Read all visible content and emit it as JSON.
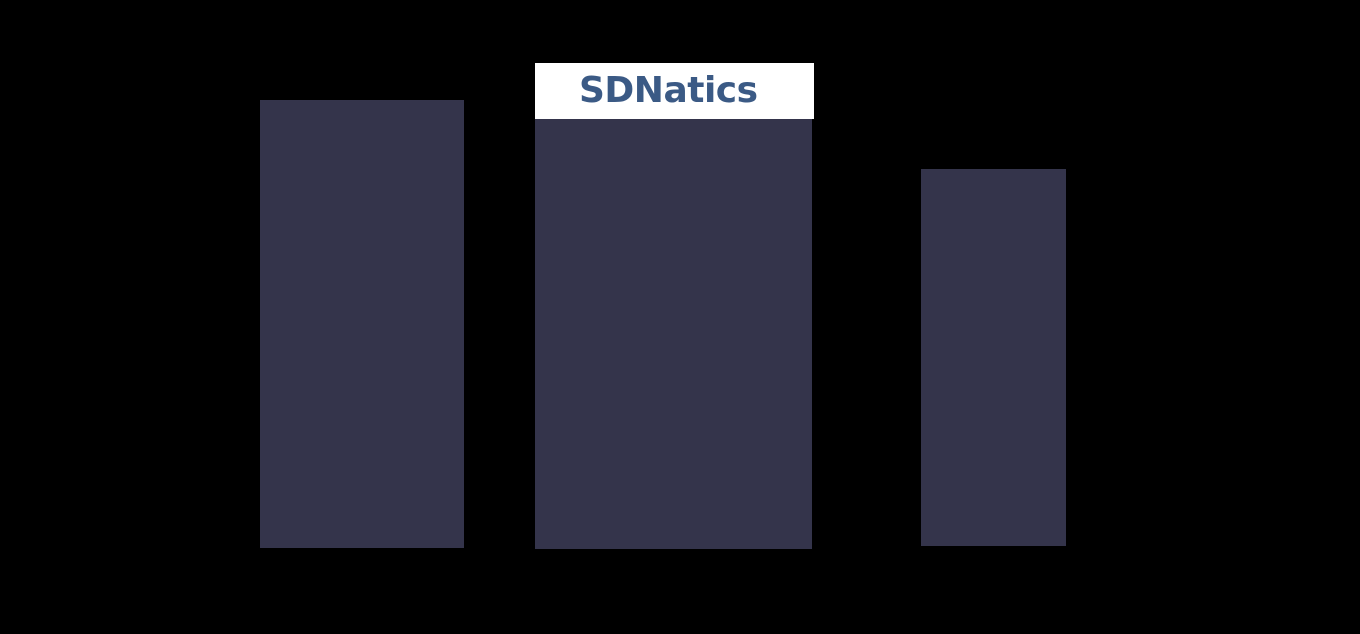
{
  "colors": {
    "background": "#000000",
    "panel": "#34344b",
    "logo_box": "#ffffff",
    "logo_text": "#3b5a85"
  },
  "logo": {
    "text": "SDNatics"
  },
  "panels": [
    {
      "id": "left"
    },
    {
      "id": "center"
    },
    {
      "id": "right"
    }
  ]
}
